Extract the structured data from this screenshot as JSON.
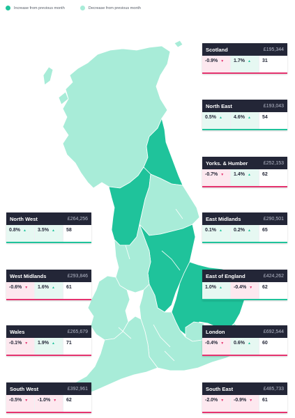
{
  "legend": {
    "increase": {
      "label": "Increase from previous month",
      "color": "#1fc39b"
    },
    "decrease": {
      "label": "Decrease from previous month",
      "color": "#a8ecd8"
    }
  },
  "regions": [
    {
      "key": "scotland",
      "name": "Scotland",
      "price": "£195,344",
      "monthly": "-0.9%",
      "monthly_trend": "down",
      "yearly": "1.7%",
      "yearly_trend": "up",
      "days": "31",
      "map_status": "decrease"
    },
    {
      "key": "north-east",
      "name": "North East",
      "price": "£193,043",
      "monthly": "0.5%",
      "monthly_trend": "up",
      "yearly": "4.6%",
      "yearly_trend": "up",
      "days": "54",
      "map_status": "increase"
    },
    {
      "key": "yorks-humber",
      "name": "Yorks. & Humber",
      "price": "£252,153",
      "monthly": "-0.7%",
      "monthly_trend": "down",
      "yearly": "1.4%",
      "yearly_trend": "up",
      "days": "62",
      "map_status": "decrease"
    },
    {
      "key": "north-west",
      "name": "North West",
      "price": "£264,256",
      "monthly": "0.8%",
      "monthly_trend": "up",
      "yearly": "3.5%",
      "yearly_trend": "up",
      "days": "58",
      "map_status": "increase"
    },
    {
      "key": "east-midlands",
      "name": "East Midlands",
      "price": "£290,501",
      "monthly": "0.1%",
      "monthly_trend": "up",
      "yearly": "0.2%",
      "yearly_trend": "up",
      "days": "65",
      "map_status": "increase"
    },
    {
      "key": "west-midlands",
      "name": "West Midlands",
      "price": "£293,846",
      "monthly": "-0.6%",
      "monthly_trend": "down",
      "yearly": "1.6%",
      "yearly_trend": "up",
      "days": "61",
      "map_status": "decrease"
    },
    {
      "key": "east-of-england",
      "name": "East of England",
      "price": "£424,262",
      "monthly": "1.0%",
      "monthly_trend": "up",
      "yearly": "-0.4%",
      "yearly_trend": "down",
      "days": "62",
      "map_status": "increase"
    },
    {
      "key": "wales",
      "name": "Wales",
      "price": "£265,679",
      "monthly": "-0.1%",
      "monthly_trend": "down",
      "yearly": "1.9%",
      "yearly_trend": "up",
      "days": "71",
      "map_status": "decrease"
    },
    {
      "key": "london",
      "name": "London",
      "price": "£692,544",
      "monthly": "-0.4%",
      "monthly_trend": "down",
      "yearly": "0.6%",
      "yearly_trend": "up",
      "days": "60",
      "map_status": "decrease"
    },
    {
      "key": "south-west",
      "name": "South West",
      "price": "£392,961",
      "monthly": "-0.5%",
      "monthly_trend": "down",
      "yearly": "-1.0%",
      "yearly_trend": "down",
      "days": "62",
      "map_status": "decrease"
    },
    {
      "key": "south-east",
      "name": "South East",
      "price": "£485,733",
      "monthly": "-2.0%",
      "monthly_trend": "down",
      "yearly": "-0.9%",
      "yearly_trend": "down",
      "days": "61",
      "map_status": "decrease"
    }
  ]
}
